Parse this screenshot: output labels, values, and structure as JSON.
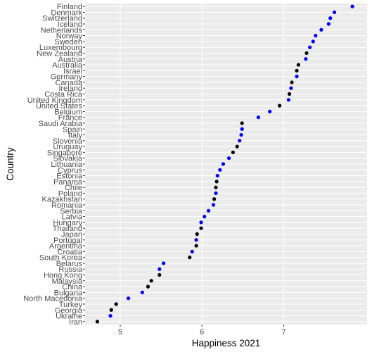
{
  "chart_data": {
    "type": "scatter",
    "xlabel": "Happiness 2021",
    "ylabel": "Country",
    "xlim": [
      4.57,
      8.02
    ],
    "xticks": [
      5,
      6,
      7
    ],
    "grid": true,
    "colors": {
      "panel": "#ebebeb",
      "grid_major": "#ffffff",
      "grid_minor": "#f5f5f5",
      "black": "#000000",
      "blue": "#0000ff"
    },
    "points": [
      {
        "country": "Finland",
        "happiness": 7.84,
        "color": "blue"
      },
      {
        "country": "Denmark",
        "happiness": 7.62,
        "color": "blue"
      },
      {
        "country": "Switzerland",
        "happiness": 7.57,
        "color": "blue"
      },
      {
        "country": "Iceland",
        "happiness": 7.55,
        "color": "blue"
      },
      {
        "country": "Netherlands",
        "happiness": 7.46,
        "color": "blue"
      },
      {
        "country": "Norway",
        "happiness": 7.39,
        "color": "blue"
      },
      {
        "country": "Sweden",
        "happiness": 7.36,
        "color": "blue"
      },
      {
        "country": "Luxembourg",
        "happiness": 7.32,
        "color": "blue"
      },
      {
        "country": "New Zealand",
        "happiness": 7.28,
        "color": "black"
      },
      {
        "country": "Austria",
        "happiness": 7.27,
        "color": "blue"
      },
      {
        "country": "Australia",
        "happiness": 7.18,
        "color": "black"
      },
      {
        "country": "Israel",
        "happiness": 7.16,
        "color": "black"
      },
      {
        "country": "Germany",
        "happiness": 7.16,
        "color": "blue"
      },
      {
        "country": "Canada",
        "happiness": 7.1,
        "color": "black"
      },
      {
        "country": "Ireland",
        "happiness": 7.09,
        "color": "blue"
      },
      {
        "country": "Costa Rica",
        "happiness": 7.07,
        "color": "black"
      },
      {
        "country": "United Kingdom",
        "happiness": 7.06,
        "color": "blue"
      },
      {
        "country": "United States",
        "happiness": 6.95,
        "color": "black"
      },
      {
        "country": "Belgium",
        "happiness": 6.83,
        "color": "blue"
      },
      {
        "country": "France",
        "happiness": 6.69,
        "color": "blue"
      },
      {
        "country": "Saudi Arabia",
        "happiness": 6.49,
        "color": "black"
      },
      {
        "country": "Spain",
        "happiness": 6.49,
        "color": "blue"
      },
      {
        "country": "Italy",
        "happiness": 6.48,
        "color": "blue"
      },
      {
        "country": "Slovenia",
        "happiness": 6.46,
        "color": "blue"
      },
      {
        "country": "Uruguay",
        "happiness": 6.43,
        "color": "black"
      },
      {
        "country": "Singapore",
        "happiness": 6.38,
        "color": "black"
      },
      {
        "country": "Slovakia",
        "happiness": 6.33,
        "color": "blue"
      },
      {
        "country": "Lithuania",
        "happiness": 6.26,
        "color": "blue"
      },
      {
        "country": "Cyprus",
        "happiness": 6.22,
        "color": "blue"
      },
      {
        "country": "Estonia",
        "happiness": 6.19,
        "color": "blue"
      },
      {
        "country": "Panama",
        "happiness": 6.18,
        "color": "black"
      },
      {
        "country": "Chile",
        "happiness": 6.17,
        "color": "black"
      },
      {
        "country": "Poland",
        "happiness": 6.17,
        "color": "blue"
      },
      {
        "country": "Kazakhstan",
        "happiness": 6.15,
        "color": "black"
      },
      {
        "country": "Romania",
        "happiness": 6.14,
        "color": "blue"
      },
      {
        "country": "Serbia",
        "happiness": 6.08,
        "color": "blue"
      },
      {
        "country": "Latvia",
        "happiness": 6.03,
        "color": "blue"
      },
      {
        "country": "Hungary",
        "happiness": 5.99,
        "color": "blue"
      },
      {
        "country": "Thailand",
        "happiness": 5.99,
        "color": "black"
      },
      {
        "country": "Japan",
        "happiness": 5.94,
        "color": "black"
      },
      {
        "country": "Portugal",
        "happiness": 5.93,
        "color": "blue"
      },
      {
        "country": "Argentina",
        "happiness": 5.93,
        "color": "black"
      },
      {
        "country": "Croatia",
        "happiness": 5.88,
        "color": "blue"
      },
      {
        "country": "South Korea",
        "happiness": 5.85,
        "color": "black"
      },
      {
        "country": "Belarus",
        "happiness": 5.53,
        "color": "blue"
      },
      {
        "country": "Russia",
        "happiness": 5.48,
        "color": "blue"
      },
      {
        "country": "Hong Kong",
        "happiness": 5.48,
        "color": "black"
      },
      {
        "country": "Malaysia",
        "happiness": 5.38,
        "color": "black"
      },
      {
        "country": "China",
        "happiness": 5.34,
        "color": "black"
      },
      {
        "country": "Bulgaria",
        "happiness": 5.27,
        "color": "blue"
      },
      {
        "country": "North Macedonia",
        "happiness": 5.1,
        "color": "blue"
      },
      {
        "country": "Turkey",
        "happiness": 4.95,
        "color": "black"
      },
      {
        "country": "Georgia",
        "happiness": 4.89,
        "color": "black"
      },
      {
        "country": "Ukraine",
        "happiness": 4.88,
        "color": "blue"
      },
      {
        "country": "Iran",
        "happiness": 4.72,
        "color": "black"
      }
    ]
  }
}
